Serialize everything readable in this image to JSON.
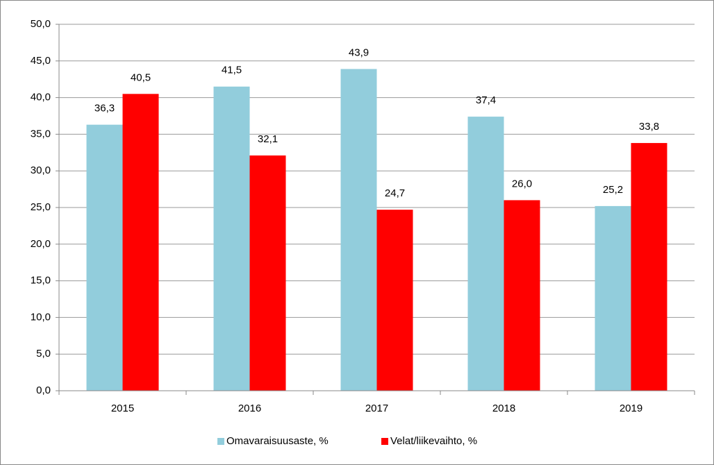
{
  "chart_data": {
    "type": "bar",
    "categories": [
      "2015",
      "2016",
      "2017",
      "2018",
      "2019"
    ],
    "series": [
      {
        "name": "Omavaraisuusaste, %",
        "color": "#92cddc",
        "values": [
          36.3,
          41.5,
          43.9,
          37.4,
          25.2
        ],
        "value_labels": [
          "36,3",
          "41,5",
          "43,9",
          "37,4",
          "25,2"
        ]
      },
      {
        "name": "Velat/liikevaihto, %",
        "color": "#ff0000",
        "values": [
          40.5,
          32.1,
          24.7,
          26.0,
          33.8
        ],
        "value_labels": [
          "40,5",
          "32,1",
          "24,7",
          "26,0",
          "33,8"
        ]
      }
    ],
    "ylim": [
      0,
      50
    ],
    "yticks": [
      {
        "value": 0,
        "label": "0,0"
      },
      {
        "value": 5,
        "label": "5,0"
      },
      {
        "value": 10,
        "label": "10,0"
      },
      {
        "value": 15,
        "label": "15,0"
      },
      {
        "value": 20,
        "label": "20,0"
      },
      {
        "value": 25,
        "label": "25,0"
      },
      {
        "value": 30,
        "label": "30,0"
      },
      {
        "value": 35,
        "label": "35,0"
      },
      {
        "value": 40,
        "label": "40,0"
      },
      {
        "value": 45,
        "label": "45,0"
      },
      {
        "value": 50,
        "label": "50,0"
      }
    ],
    "grid": true,
    "legend": "bottom"
  }
}
